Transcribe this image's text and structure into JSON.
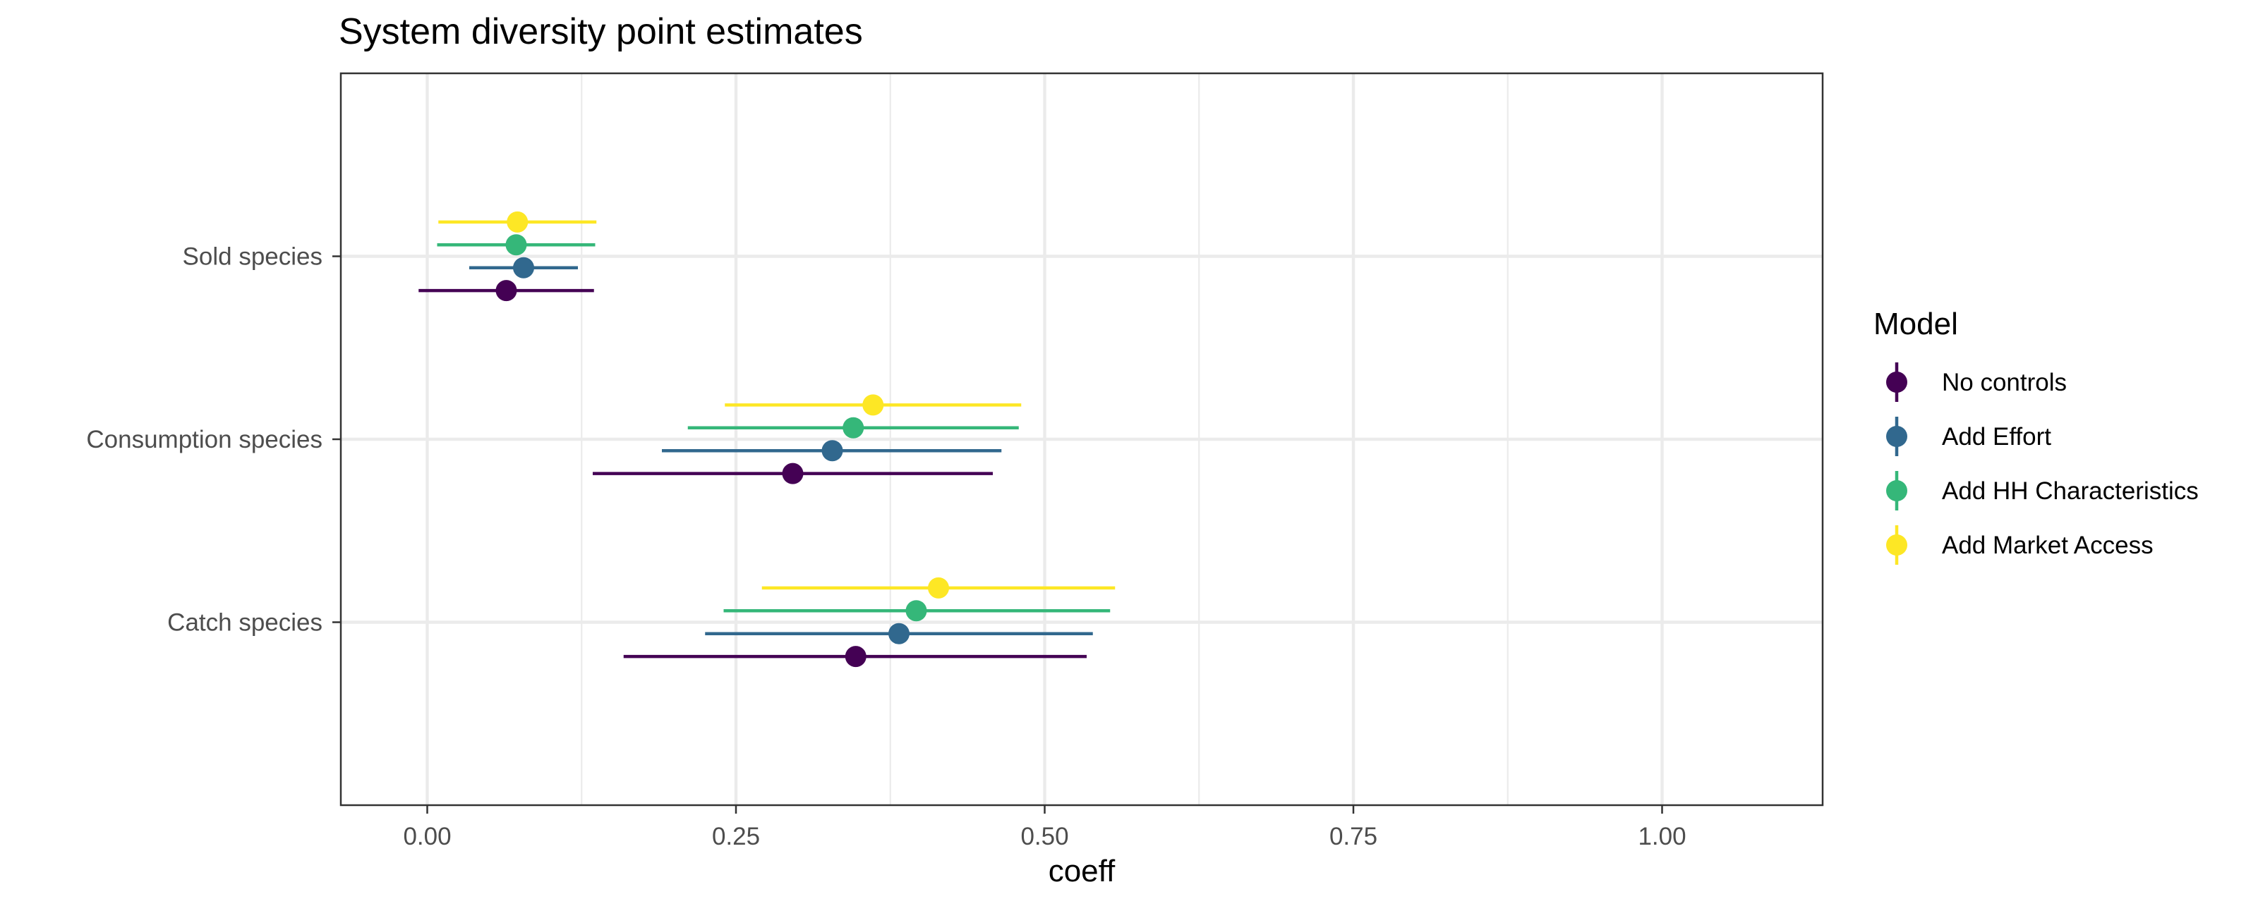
{
  "chart_data": {
    "type": "scatter",
    "subtype": "point-range (coefficient plot)",
    "title": "System diversity point estimates",
    "xlabel": "coeff",
    "ylabel": "",
    "xlim": [
      -0.07,
      1.13
    ],
    "x_ticks": [
      0.0,
      0.25,
      0.5,
      0.75,
      1.0
    ],
    "x_tick_labels": [
      "0.00",
      "0.25",
      "0.50",
      "0.75",
      "1.00"
    ],
    "categories": [
      "Sold species",
      "Consumption species",
      "Catch species"
    ],
    "grid": true,
    "legend": {
      "title": "Model",
      "position": "right"
    },
    "series": [
      {
        "name": "No controls",
        "color": "#440154",
        "points": [
          {
            "category": "Sold species",
            "estimate": 0.064,
            "low": -0.007,
            "high": 0.135
          },
          {
            "category": "Consumption species",
            "estimate": 0.296,
            "low": 0.134,
            "high": 0.458
          },
          {
            "category": "Catch species",
            "estimate": 0.347,
            "low": 0.159,
            "high": 0.534
          }
        ]
      },
      {
        "name": "Add Effort",
        "color": "#31688E",
        "points": [
          {
            "category": "Sold species",
            "estimate": 0.078,
            "low": 0.034,
            "high": 0.122
          },
          {
            "category": "Consumption species",
            "estimate": 0.328,
            "low": 0.19,
            "high": 0.465
          },
          {
            "category": "Catch species",
            "estimate": 0.382,
            "low": 0.225,
            "high": 0.539
          }
        ]
      },
      {
        "name": "Add HH Characteristics",
        "color": "#35B779",
        "points": [
          {
            "category": "Sold species",
            "estimate": 0.072,
            "low": 0.008,
            "high": 0.136
          },
          {
            "category": "Consumption species",
            "estimate": 0.345,
            "low": 0.211,
            "high": 0.479
          },
          {
            "category": "Catch species",
            "estimate": 0.396,
            "low": 0.24,
            "high": 0.553
          }
        ]
      },
      {
        "name": "Add Market Access",
        "color": "#FDE725",
        "points": [
          {
            "category": "Sold species",
            "estimate": 0.073,
            "low": 0.009,
            "high": 0.137
          },
          {
            "category": "Consumption species",
            "estimate": 0.361,
            "low": 0.241,
            "high": 0.481
          },
          {
            "category": "Catch species",
            "estimate": 0.414,
            "low": 0.271,
            "high": 0.557
          }
        ]
      }
    ]
  }
}
